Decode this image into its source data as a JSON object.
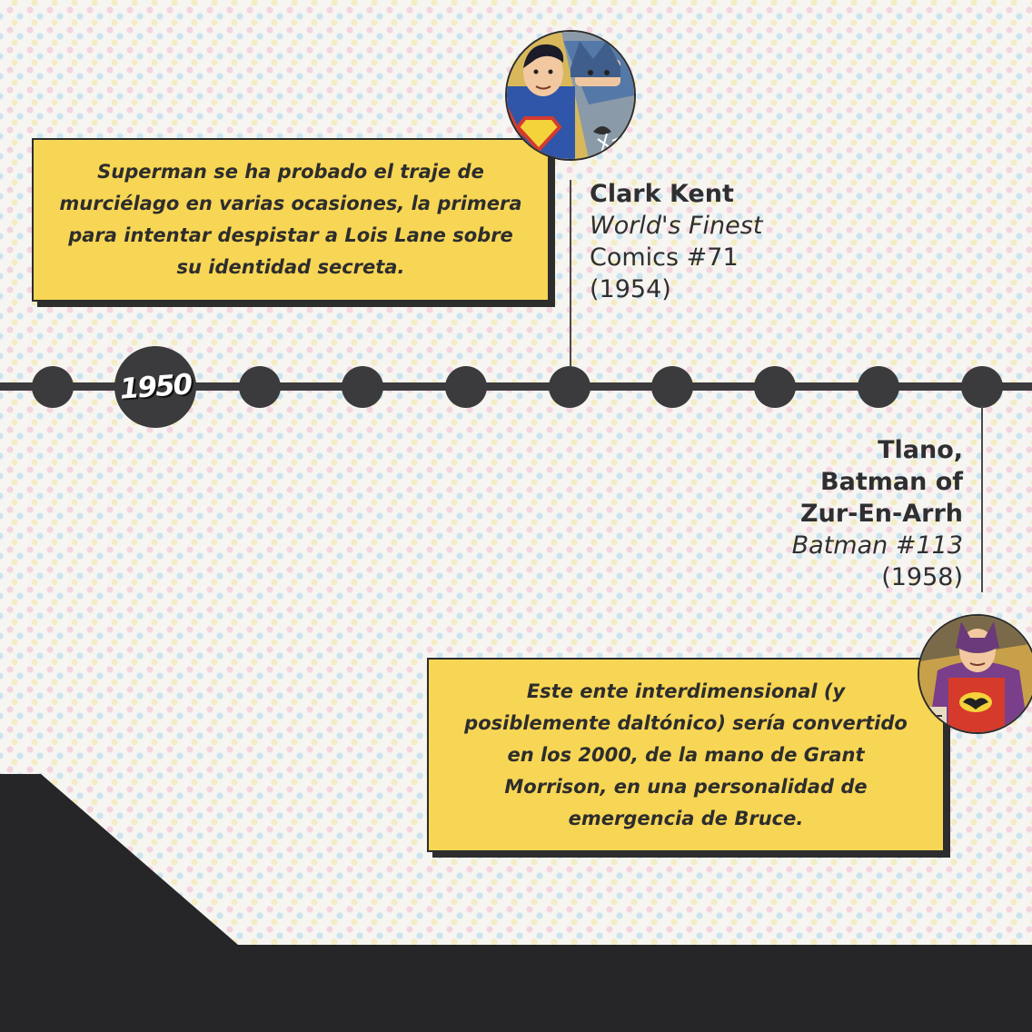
{
  "timeline": {
    "year_label": "1950"
  },
  "entries": [
    {
      "name": "Clark Kent",
      "issue_line1": "World's Finest",
      "issue_line2": "Comics #71",
      "year": "(1954)",
      "note": "Superman se ha probado el traje de murciélago en varias ocasiones, la primera para intentar despistar a Lois Lane sobre su identidad secreta.",
      "avatar_icon": "superman-batman-portrait-icon"
    },
    {
      "name_line1": "Tlano,",
      "name_line2": "Batman of",
      "name_line3": "Zur-En-Arrh",
      "issue": "Batman #113",
      "year": "(1958)",
      "note": "Este ente interdimensional (y posiblemente daltónico) sería convertido en los 2000, de la mano de Grant Morrison, en una personalidad de emergencia de Bruce.",
      "avatar_icon": "batman-zur-en-arrh-portrait-icon"
    }
  ],
  "colors": {
    "note_background": "#f8d655",
    "timeline": "#3b3b3d",
    "dark_band": "#262628"
  }
}
